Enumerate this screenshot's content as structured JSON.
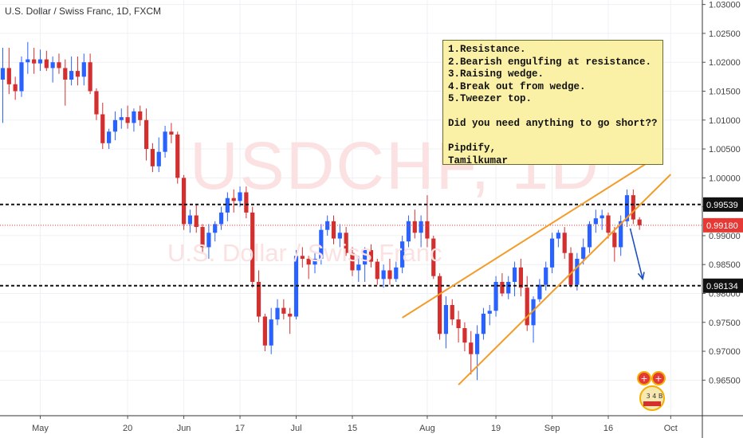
{
  "header": {
    "title": "U.S. Dollar / Swiss Franc, 1D, FXCM"
  },
  "watermark": {
    "symbol": "USDCHF, 1D",
    "name": "U.S. Dollar / Swiss Franc"
  },
  "note": {
    "lines": [
      "1.Resistance.",
      "2.Bearish engulfing at resistance.",
      "3.Raising wedge.",
      "4.Break out from wedge.",
      "5.Tweezer top.",
      "",
      "Did you need anything to go short??",
      "",
      "Pipdify,",
      "Tamilkumar"
    ]
  },
  "badge": {
    "text": "3 4 B"
  },
  "colors": {
    "up": "#2962ff",
    "down": "#d32f2f",
    "wedge": "#f39c2a",
    "arrow": "#1e4fc0",
    "current": "#e53935"
  },
  "chart_data": {
    "type": "candlestick",
    "title": "U.S. Dollar / Swiss Franc, 1D, FXCM",
    "ylim": [
      0.9605,
      1.0305
    ],
    "y_ticks": [
      "0.96500",
      "0.97000",
      "0.97500",
      "0.98000",
      "0.98500",
      "0.99000",
      "0.99500",
      "1.00000",
      "1.00500",
      "1.01000",
      "1.01500",
      "1.02000",
      "1.02500",
      "1.03000"
    ],
    "x_ticks": [
      {
        "label": "May",
        "bar": 6
      },
      {
        "label": "20",
        "bar": 20
      },
      {
        "label": "Jun",
        "bar": 29
      },
      {
        "label": "17",
        "bar": 38
      },
      {
        "label": "Jul",
        "bar": 47
      },
      {
        "label": "15",
        "bar": 56
      },
      {
        "label": "Aug",
        "bar": 68
      },
      {
        "label": "19",
        "bar": 79
      },
      {
        "label": "Sep",
        "bar": 88
      },
      {
        "label": "16",
        "bar": 97
      },
      {
        "label": "Oct",
        "bar": 107
      }
    ],
    "levels": [
      {
        "name": "resistance",
        "value": "0.99539",
        "style": "dashed"
      },
      {
        "name": "support",
        "value": "0.98134",
        "style": "dashed"
      },
      {
        "name": "current",
        "value": "0.99180",
        "style": "dotted"
      }
    ],
    "wedge_lines": [
      {
        "from": {
          "bar": 64,
          "price": 0.9758
        },
        "to": {
          "bar": 104,
          "price": 1.0031
        }
      },
      {
        "from": {
          "bar": 73,
          "price": 0.9642
        },
        "to": {
          "bar": 107,
          "price": 1.0006
        }
      }
    ],
    "arrow": {
      "from": {
        "bar": 100,
        "price": 0.9918
      },
      "to": {
        "bar": 102,
        "price": 0.9825
      }
    },
    "candles": [
      [
        1.017,
        1.0225,
        1.0095,
        1.019
      ],
      [
        1.019,
        1.0225,
        1.0145,
        1.0162
      ],
      [
        1.0162,
        1.0175,
        1.0135,
        1.015
      ],
      [
        1.015,
        1.021,
        1.014,
        1.02
      ],
      [
        1.02,
        1.0235,
        1.018,
        1.0205
      ],
      [
        1.0205,
        1.0225,
        1.018,
        1.0198
      ],
      [
        1.0198,
        1.0222,
        1.0185,
        1.0205
      ],
      [
        1.0205,
        1.022,
        1.0185,
        1.019
      ],
      [
        1.019,
        1.021,
        1.0165,
        1.02
      ],
      [
        1.02,
        1.0215,
        1.018,
        1.019
      ],
      [
        1.019,
        1.0205,
        1.0125,
        1.017
      ],
      [
        1.017,
        1.021,
        1.016,
        1.0185
      ],
      [
        1.0185,
        1.021,
        1.016,
        1.0175
      ],
      [
        1.0175,
        1.0215,
        1.016,
        1.02
      ],
      [
        1.02,
        1.0215,
        1.0145,
        1.015
      ],
      [
        1.015,
        1.0155,
        1.01,
        1.011
      ],
      [
        1.011,
        1.013,
        1.005,
        1.006
      ],
      [
        1.006,
        1.0085,
        1.005,
        1.008
      ],
      [
        1.008,
        1.0115,
        1.0065,
        1.01
      ],
      [
        1.01,
        1.012,
        1.0085,
        1.0105
      ],
      [
        1.0105,
        1.0125,
        1.0085,
        1.0095
      ],
      [
        1.0095,
        1.012,
        1.008,
        1.0115
      ],
      [
        1.0115,
        1.0125,
        1.009,
        1.01
      ],
      [
        1.01,
        1.012,
        1.003,
        1.005
      ],
      [
        1.005,
        1.006,
        1.001,
        1.002
      ],
      [
        1.002,
        1.007,
        1.001,
        1.0045
      ],
      [
        1.0045,
        1.009,
        1.0035,
        1.008
      ],
      [
        1.008,
        1.0095,
        1.006,
        1.0075
      ],
      [
        1.0075,
        1.008,
        0.999,
        1.0
      ],
      [
        1.0,
        1.0005,
        0.991,
        0.992
      ],
      [
        0.992,
        0.9945,
        0.9905,
        0.9935
      ],
      [
        0.9935,
        0.9955,
        0.9905,
        0.9915
      ],
      [
        0.9915,
        0.992,
        0.987,
        0.988
      ],
      [
        0.988,
        0.992,
        0.986,
        0.9905
      ],
      [
        0.9905,
        0.9925,
        0.989,
        0.992
      ],
      [
        0.992,
        0.995,
        0.991,
        0.994
      ],
      [
        0.994,
        0.9975,
        0.9925,
        0.9965
      ],
      [
        0.9965,
        0.998,
        0.994,
        0.996
      ],
      [
        0.996,
        0.9985,
        0.995,
        0.9975
      ],
      [
        0.9975,
        0.9985,
        0.993,
        0.994
      ],
      [
        0.994,
        0.995,
        0.981,
        0.982
      ],
      [
        0.982,
        0.984,
        0.975,
        0.976
      ],
      [
        0.976,
        0.9765,
        0.97,
        0.971
      ],
      [
        0.971,
        0.9775,
        0.9695,
        0.9755
      ],
      [
        0.9755,
        0.979,
        0.9745,
        0.9775
      ],
      [
        0.9775,
        0.979,
        0.9755,
        0.9765
      ],
      [
        0.9765,
        0.9775,
        0.973,
        0.976
      ],
      [
        0.976,
        0.9875,
        0.9755,
        0.9865
      ],
      [
        0.9865,
        0.988,
        0.9845,
        0.986
      ],
      [
        0.986,
        0.9865,
        0.9825,
        0.985
      ],
      [
        0.985,
        0.987,
        0.9835,
        0.986
      ],
      [
        0.986,
        0.992,
        0.985,
        0.991
      ],
      [
        0.991,
        0.9935,
        0.99,
        0.9925
      ],
      [
        0.9925,
        0.9935,
        0.9885,
        0.9895
      ],
      [
        0.9895,
        0.992,
        0.988,
        0.9905
      ],
      [
        0.9905,
        0.9915,
        0.9865,
        0.987
      ],
      [
        0.987,
        0.988,
        0.983,
        0.984
      ],
      [
        0.984,
        0.9865,
        0.982,
        0.985
      ],
      [
        0.985,
        0.988,
        0.982,
        0.9875
      ],
      [
        0.9875,
        0.9885,
        0.9845,
        0.9855
      ],
      [
        0.9855,
        0.986,
        0.9815,
        0.9825
      ],
      [
        0.9825,
        0.985,
        0.981,
        0.984
      ],
      [
        0.984,
        0.986,
        0.9815,
        0.9825
      ],
      [
        0.9825,
        0.9855,
        0.982,
        0.9845
      ],
      [
        0.9845,
        0.99,
        0.9835,
        0.989
      ],
      [
        0.989,
        0.9935,
        0.988,
        0.9925
      ],
      [
        0.9925,
        0.9945,
        0.9895,
        0.9905
      ],
      [
        0.9905,
        0.9935,
        0.988,
        0.9925
      ],
      [
        0.9925,
        0.997,
        0.988,
        0.9895
      ],
      [
        0.9895,
        0.99,
        0.9825,
        0.983
      ],
      [
        0.983,
        0.9835,
        0.972,
        0.973
      ],
      [
        0.973,
        0.9795,
        0.9705,
        0.978
      ],
      [
        0.978,
        0.979,
        0.9745,
        0.9755
      ],
      [
        0.9755,
        0.977,
        0.9715,
        0.974
      ],
      [
        0.974,
        0.975,
        0.97,
        0.9715
      ],
      [
        0.9715,
        0.9735,
        0.966,
        0.9695
      ],
      [
        0.9695,
        0.9745,
        0.965,
        0.973
      ],
      [
        0.973,
        0.9775,
        0.972,
        0.9765
      ],
      [
        0.9765,
        0.978,
        0.9745,
        0.977
      ],
      [
        0.977,
        0.983,
        0.976,
        0.982
      ],
      [
        0.982,
        0.9835,
        0.9795,
        0.98
      ],
      [
        0.98,
        0.983,
        0.979,
        0.982
      ],
      [
        0.982,
        0.9855,
        0.9795,
        0.9845
      ],
      [
        0.9845,
        0.986,
        0.9795,
        0.981
      ],
      [
        0.981,
        0.983,
        0.9735,
        0.9745
      ],
      [
        0.9745,
        0.9795,
        0.9715,
        0.979
      ],
      [
        0.979,
        0.9825,
        0.9785,
        0.9815
      ],
      [
        0.9815,
        0.9855,
        0.9805,
        0.9845
      ],
      [
        0.9845,
        0.9905,
        0.9835,
        0.9895
      ],
      [
        0.9895,
        0.991,
        0.988,
        0.9905
      ],
      [
        0.9905,
        0.9915,
        0.986,
        0.987
      ],
      [
        0.987,
        0.988,
        0.981,
        0.9815
      ],
      [
        0.9815,
        0.987,
        0.9805,
        0.986
      ],
      [
        0.986,
        0.9895,
        0.985,
        0.988
      ],
      [
        0.988,
        0.9925,
        0.987,
        0.992
      ],
      [
        0.992,
        0.9945,
        0.9905,
        0.993
      ],
      [
        0.993,
        0.9945,
        0.991,
        0.9935
      ],
      [
        0.9935,
        0.994,
        0.9895,
        0.9905
      ],
      [
        0.9905,
        0.9915,
        0.9855,
        0.988
      ],
      [
        0.988,
        0.9935,
        0.9865,
        0.9925
      ],
      [
        0.9925,
        0.998,
        0.9915,
        0.997
      ],
      [
        0.997,
        0.998,
        0.992,
        0.9928
      ],
      [
        0.9928,
        0.9932,
        0.991,
        0.9918
      ]
    ]
  }
}
